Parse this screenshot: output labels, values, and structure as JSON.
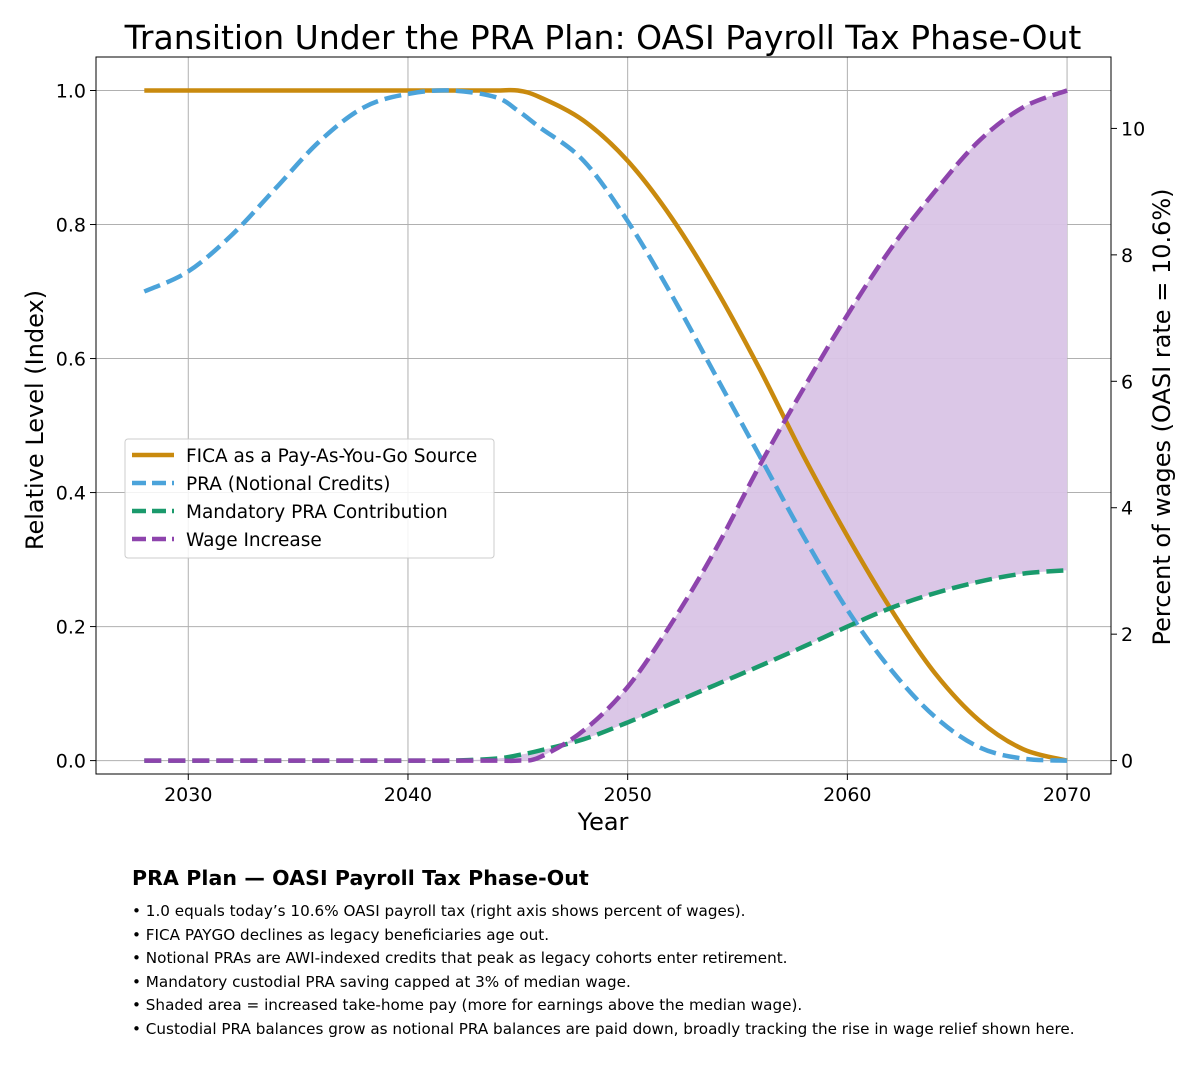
{
  "chart_data": {
    "type": "line",
    "title": "Transition Under the PRA Plan: OASI Payroll Tax Phase-Out",
    "xlabel": "Year",
    "ylabel": "Relative Level (Index)",
    "y2label": "Percent of wages (OASI rate = 10.6%)",
    "xlim": [
      2025.8,
      2072
    ],
    "ylim": [
      -0.02,
      1.05
    ],
    "y2_scale": 10.6,
    "xticks": [
      2030,
      2040,
      2050,
      2060,
      2070
    ],
    "yticks": [
      0.0,
      0.2,
      0.4,
      0.6,
      0.8,
      1.0
    ],
    "y2ticks": [
      0,
      2,
      4,
      6,
      8,
      10
    ],
    "grid": true,
    "legend_position": "center-left",
    "x": [
      2028,
      2030,
      2032,
      2034,
      2036,
      2038,
      2040,
      2042,
      2044,
      2045,
      2046,
      2048,
      2050,
      2052,
      2054,
      2056,
      2058,
      2060,
      2062,
      2064,
      2066,
      2068,
      2070
    ],
    "series": [
      {
        "name": "FICA as a Pay-As-You-Go Source",
        "color": "#C98A0E",
        "dash": "solid",
        "values": [
          1.0,
          1.0,
          1.0,
          1.0,
          1.0,
          1.0,
          1.0,
          1.0,
          1.0,
          1.0,
          0.99,
          0.955,
          0.895,
          0.81,
          0.705,
          0.585,
          0.455,
          0.335,
          0.225,
          0.13,
          0.06,
          0.017,
          0.0
        ]
      },
      {
        "name": "PRA (Notional Credits)",
        "color": "#4BA3DA",
        "dash": "dashed",
        "values": [
          0.7,
          0.73,
          0.785,
          0.855,
          0.925,
          0.975,
          0.995,
          1.0,
          0.99,
          0.97,
          0.945,
          0.895,
          0.805,
          0.695,
          0.575,
          0.455,
          0.335,
          0.225,
          0.135,
          0.065,
          0.02,
          0.003,
          0.0
        ]
      },
      {
        "name": "Mandatory PRA Contribution",
        "color": "#1A9A6C",
        "dash": "dashed",
        "values": [
          0.0,
          0.0,
          0.0,
          0.0,
          0.0,
          0.0,
          0.0,
          0.0,
          0.003,
          0.008,
          0.015,
          0.032,
          0.057,
          0.085,
          0.113,
          0.141,
          0.17,
          0.2,
          0.228,
          0.25,
          0.267,
          0.279,
          0.284
        ]
      },
      {
        "name": "Wage Increase",
        "color": "#8E44AD",
        "dash": "dashed",
        "fill_to": "Mandatory PRA Contribution",
        "fill_color": "#D9C4E6",
        "values": [
          0.0,
          0.0,
          0.0,
          0.0,
          0.0,
          0.0,
          0.0,
          0.0,
          0.0,
          0.0,
          0.005,
          0.045,
          0.11,
          0.205,
          0.315,
          0.44,
          0.555,
          0.665,
          0.765,
          0.85,
          0.925,
          0.975,
          1.0
        ]
      }
    ]
  },
  "notes": {
    "title": "PRA Plan — OASI Payroll Tax Phase-Out",
    "items": [
      "1.0 equals today’s 10.6% OASI payroll tax (right axis shows percent of wages).",
      "FICA PAYGO declines as legacy beneficiaries age out.",
      "Notional PRAs are AWI-indexed credits that peak as legacy cohorts enter retirement.",
      "Mandatory custodial PRA saving capped at 3% of median wage.",
      "Shaded area = increased take-home pay (more for earnings above the median wage).",
      "Custodial PRA balances grow as notional PRA balances are paid down, broadly tracking the rise in wage relief shown here."
    ]
  }
}
